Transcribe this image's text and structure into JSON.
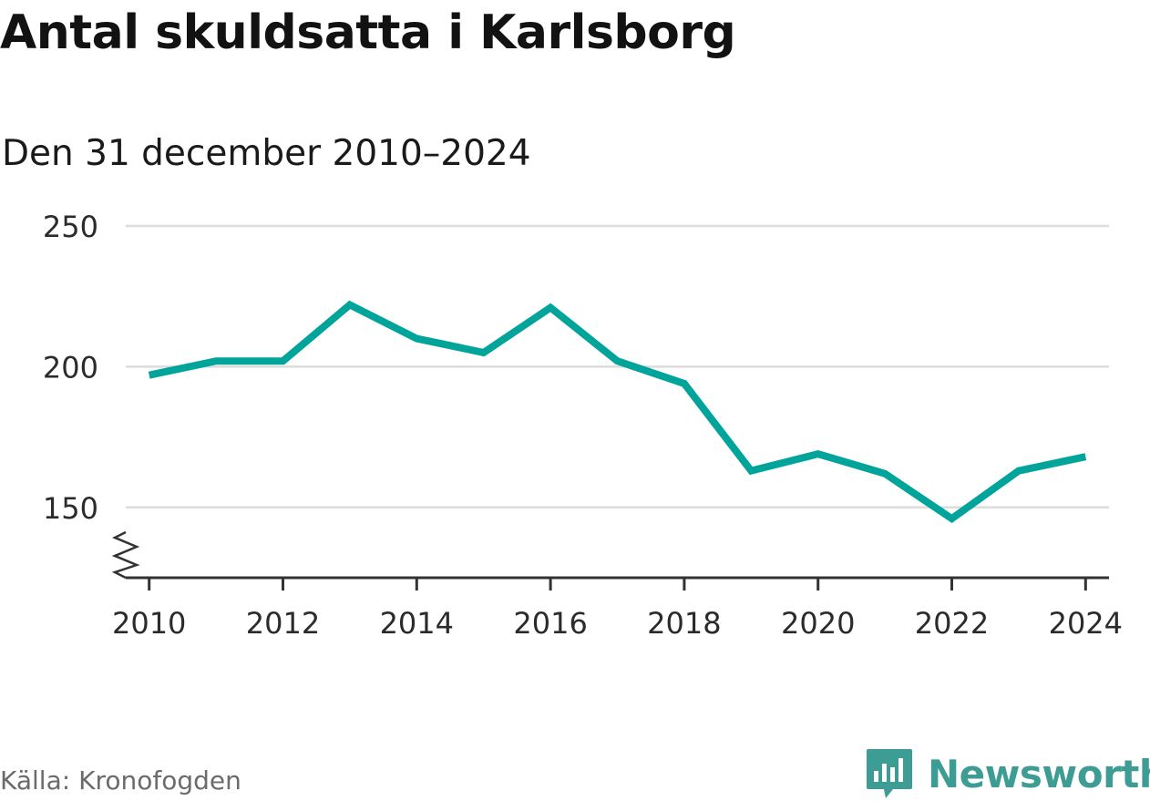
{
  "header": {
    "title": "Antal skuldsatta i Karlsborg",
    "subtitle": "Den 31 december 2010–2024"
  },
  "footer": {
    "source": "Källa: Kronofogden",
    "brand": "Newsworthy"
  },
  "colors": {
    "line": "#00a49a",
    "grid": "#dcdcdc",
    "axis": "#333333",
    "brand": "#3d9c93"
  },
  "chart_data": {
    "type": "line",
    "title": "Antal skuldsatta i Karlsborg",
    "subtitle": "Den 31 december 2010–2024",
    "xlabel": "",
    "ylabel": "",
    "x": [
      2010,
      2011,
      2012,
      2013,
      2014,
      2015,
      2016,
      2017,
      2018,
      2019,
      2020,
      2021,
      2022,
      2023,
      2024
    ],
    "series": [
      {
        "values": [
          197,
          202,
          202,
          222,
          210,
          205,
          221,
          202,
          194,
          163,
          169,
          162,
          146,
          163,
          168
        ]
      }
    ],
    "xlim": [
      2009.65,
      2024.35
    ],
    "ylim": [
      125,
      250
    ],
    "xticks": [
      2010,
      2012,
      2014,
      2016,
      2018,
      2020,
      2022,
      2024
    ],
    "yticks": [
      150,
      200,
      250
    ],
    "grid": "horizontal",
    "axis_break": true,
    "legend": "none"
  }
}
